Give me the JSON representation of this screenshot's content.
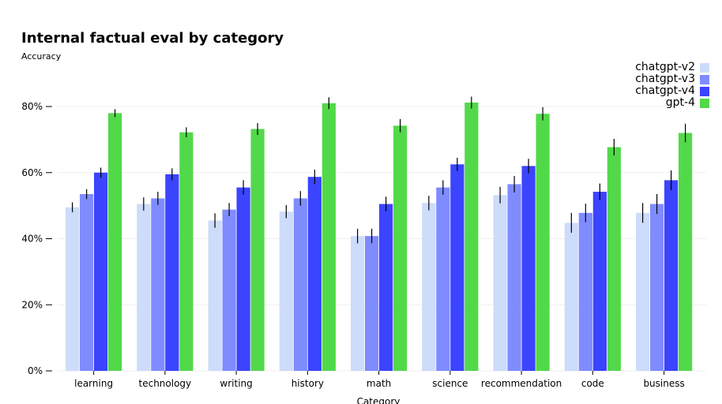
{
  "chart_data": {
    "type": "bar",
    "title": "Internal factual eval by category",
    "ylabel": "Accuracy",
    "xlabel": "Category",
    "ylim": [
      0,
      0.9
    ],
    "yticks": [
      {
        "value": 0,
        "label": "0%"
      },
      {
        "value": 0.2,
        "label": "20%"
      },
      {
        "value": 0.4,
        "label": "40%"
      },
      {
        "value": 0.6,
        "label": "60%"
      },
      {
        "value": 0.8,
        "label": "80%"
      }
    ],
    "grid": true,
    "legend_position": "top-right",
    "categories": [
      "learning",
      "technology",
      "writing",
      "history",
      "math",
      "science",
      "recommendation",
      "code",
      "business"
    ],
    "series": [
      {
        "name": "chatgpt-v2",
        "color": "#ccdcfa",
        "values": [
          0.495,
          0.505,
          0.455,
          0.482,
          0.408,
          0.508,
          0.532,
          0.448,
          0.478
        ],
        "errors": [
          0.015,
          0.02,
          0.022,
          0.02,
          0.022,
          0.022,
          0.025,
          0.03,
          0.03
        ]
      },
      {
        "name": "chatgpt-v3",
        "color": "#7f8cff",
        "values": [
          0.535,
          0.522,
          0.488,
          0.522,
          0.408,
          0.555,
          0.565,
          0.478,
          0.505
        ],
        "errors": [
          0.015,
          0.02,
          0.02,
          0.022,
          0.022,
          0.022,
          0.025,
          0.028,
          0.03
        ]
      },
      {
        "name": "chatgpt-v4",
        "color": "#3b44ff",
        "values": [
          0.6,
          0.595,
          0.555,
          0.587,
          0.505,
          0.625,
          0.62,
          0.542,
          0.577
        ],
        "errors": [
          0.015,
          0.018,
          0.022,
          0.022,
          0.022,
          0.02,
          0.022,
          0.025,
          0.03
        ]
      },
      {
        "name": "gpt-4",
        "color": "#52d94a",
        "values": [
          0.78,
          0.722,
          0.732,
          0.81,
          0.742,
          0.812,
          0.778,
          0.677,
          0.72
        ],
        "errors": [
          0.012,
          0.015,
          0.018,
          0.018,
          0.02,
          0.018,
          0.02,
          0.025,
          0.028
        ]
      }
    ]
  }
}
